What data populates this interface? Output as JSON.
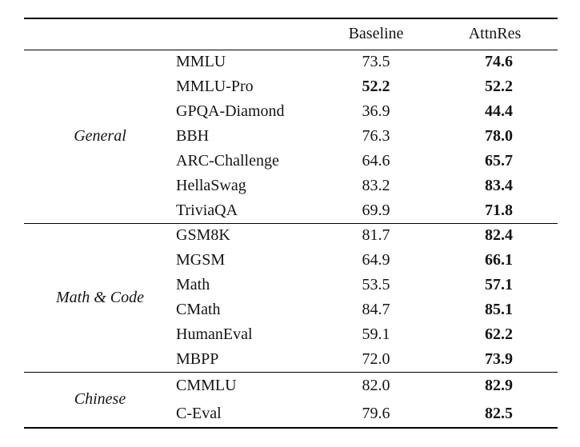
{
  "table": {
    "header": {
      "baseline": "Baseline",
      "attnres": "AttnRes"
    },
    "colors": {
      "text": "#141414",
      "rule": "#000000",
      "background": "#ffffff"
    },
    "groups": [
      {
        "label": "General",
        "rows": [
          {
            "benchmark": "MMLU",
            "baseline": "73.5",
            "baseline_bold": false,
            "attnres": "74.6",
            "attnres_bold": true
          },
          {
            "benchmark": "MMLU-Pro",
            "baseline": "52.2",
            "baseline_bold": true,
            "attnres": "52.2",
            "attnres_bold": true
          },
          {
            "benchmark": "GPQA-Diamond",
            "baseline": "36.9",
            "baseline_bold": false,
            "attnres": "44.4",
            "attnres_bold": true
          },
          {
            "benchmark": "BBH",
            "baseline": "76.3",
            "baseline_bold": false,
            "attnres": "78.0",
            "attnres_bold": true
          },
          {
            "benchmark": "ARC-Challenge",
            "baseline": "64.6",
            "baseline_bold": false,
            "attnres": "65.7",
            "attnres_bold": true
          },
          {
            "benchmark": "HellaSwag",
            "baseline": "83.2",
            "baseline_bold": false,
            "attnres": "83.4",
            "attnres_bold": true
          },
          {
            "benchmark": "TriviaQA",
            "baseline": "69.9",
            "baseline_bold": false,
            "attnres": "71.8",
            "attnres_bold": true
          }
        ]
      },
      {
        "label": "Math & Code",
        "rows": [
          {
            "benchmark": "GSM8K",
            "baseline": "81.7",
            "baseline_bold": false,
            "attnres": "82.4",
            "attnres_bold": true
          },
          {
            "benchmark": "MGSM",
            "baseline": "64.9",
            "baseline_bold": false,
            "attnres": "66.1",
            "attnres_bold": true
          },
          {
            "benchmark": "Math",
            "baseline": "53.5",
            "baseline_bold": false,
            "attnres": "57.1",
            "attnres_bold": true
          },
          {
            "benchmark": "CMath",
            "baseline": "84.7",
            "baseline_bold": false,
            "attnres": "85.1",
            "attnres_bold": true
          },
          {
            "benchmark": "HumanEval",
            "baseline": "59.1",
            "baseline_bold": false,
            "attnres": "62.2",
            "attnres_bold": true
          },
          {
            "benchmark": "MBPP",
            "baseline": "72.0",
            "baseline_bold": false,
            "attnres": "73.9",
            "attnres_bold": true
          }
        ]
      },
      {
        "label": "Chinese",
        "rows": [
          {
            "benchmark": "CMMLU",
            "baseline": "82.0",
            "baseline_bold": false,
            "attnres": "82.9",
            "attnres_bold": true
          },
          {
            "benchmark": "C-Eval",
            "baseline": "79.6",
            "baseline_bold": false,
            "attnres": "82.5",
            "attnres_bold": true
          }
        ]
      }
    ]
  }
}
